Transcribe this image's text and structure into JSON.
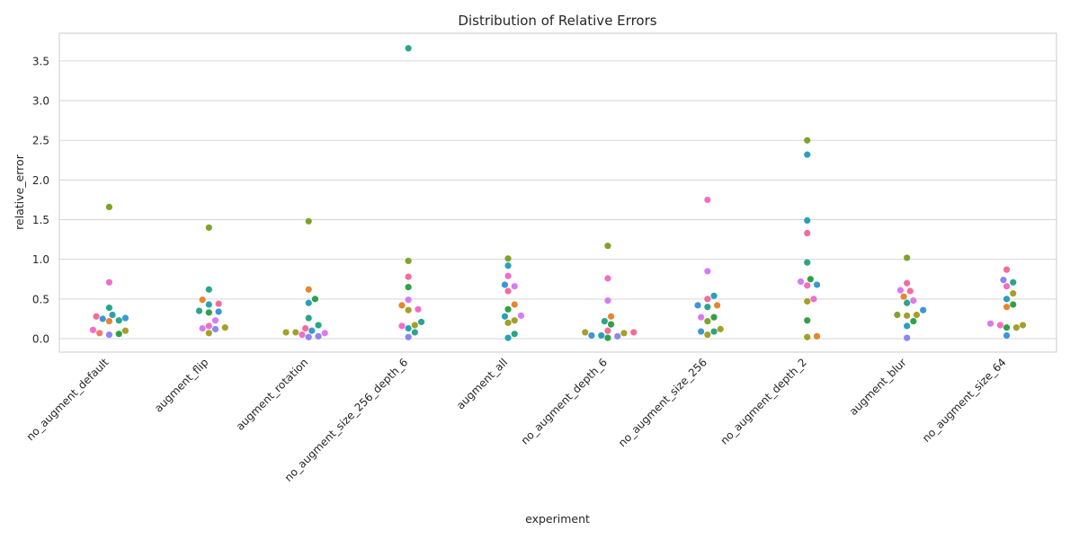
{
  "chart_data": {
    "type": "scatter",
    "subtype": "swarm",
    "title": "Distribution of Relative Errors",
    "xlabel": "experiment",
    "ylabel": "relative_error",
    "ylim": [
      -0.17,
      3.85
    ],
    "yticks": [
      0.0,
      0.5,
      1.0,
      1.5,
      2.0,
      2.5,
      3.0,
      3.5
    ],
    "ytick_labels": [
      "0.0",
      "0.5",
      "1.0",
      "1.5",
      "2.0",
      "2.5",
      "3.0",
      "3.5"
    ],
    "grid": true,
    "legend": "none",
    "palette": [
      "#f8766d",
      "#e6862f",
      "#a3a02a",
      "#7da32a",
      "#2fa147",
      "#2aa58a",
      "#2aa0b8",
      "#3b97d6",
      "#8b86f0",
      "#d67cf0",
      "#f06ec9",
      "#f56b9b"
    ],
    "categories": [
      "no_augment_default",
      "augment_flip",
      "augment_rotation",
      "no_augment_size_256_depth_6",
      "augment_all",
      "no_augment_depth_6",
      "no_augment_size_256",
      "no_augment_depth_2",
      "augment_blur",
      "no_augment_size_64"
    ],
    "points": [
      {
        "category": "no_augment_default",
        "y": 1.66,
        "color": "#7da32a"
      },
      {
        "category": "no_augment_default",
        "y": 0.71,
        "color": "#f06ec9"
      },
      {
        "category": "no_augment_default",
        "y": 0.39,
        "color": "#2aa58a"
      },
      {
        "category": "no_augment_default",
        "y": 0.3,
        "color": "#2aa0b8"
      },
      {
        "category": "no_augment_default",
        "y": 0.28,
        "color": "#f56b9b"
      },
      {
        "category": "no_augment_default",
        "y": 0.26,
        "color": "#3b97d6"
      },
      {
        "category": "no_augment_default",
        "y": 0.25,
        "color": "#3b97d6"
      },
      {
        "category": "no_augment_default",
        "y": 0.23,
        "color": "#2aa58a"
      },
      {
        "category": "no_augment_default",
        "y": 0.22,
        "color": "#e6862f"
      },
      {
        "category": "no_augment_default",
        "y": 0.11,
        "color": "#f06ec9"
      },
      {
        "category": "no_augment_default",
        "y": 0.1,
        "color": "#a3a02a"
      },
      {
        "category": "no_augment_default",
        "y": 0.07,
        "color": "#f8766d"
      },
      {
        "category": "no_augment_default",
        "y": 0.06,
        "color": "#2fa147"
      },
      {
        "category": "no_augment_default",
        "y": 0.05,
        "color": "#8b86f0"
      },
      {
        "category": "augment_flip",
        "y": 1.4,
        "color": "#7da32a"
      },
      {
        "category": "augment_flip",
        "y": 0.62,
        "color": "#2aa58a"
      },
      {
        "category": "augment_flip",
        "y": 0.49,
        "color": "#e6862f"
      },
      {
        "category": "augment_flip",
        "y": 0.44,
        "color": "#f56b9b"
      },
      {
        "category": "augment_flip",
        "y": 0.43,
        "color": "#2aa0b8"
      },
      {
        "category": "augment_flip",
        "y": 0.35,
        "color": "#2aa58a"
      },
      {
        "category": "augment_flip",
        "y": 0.34,
        "color": "#3b97d6"
      },
      {
        "category": "augment_flip",
        "y": 0.33,
        "color": "#2fa147"
      },
      {
        "category": "augment_flip",
        "y": 0.23,
        "color": "#d67cf0"
      },
      {
        "category": "augment_flip",
        "y": 0.16,
        "color": "#f06ec9"
      },
      {
        "category": "augment_flip",
        "y": 0.14,
        "color": "#a3a02a"
      },
      {
        "category": "augment_flip",
        "y": 0.13,
        "color": "#d67cf0"
      },
      {
        "category": "augment_flip",
        "y": 0.12,
        "color": "#8b86f0"
      },
      {
        "category": "augment_flip",
        "y": 0.07,
        "color": "#a3a02a"
      },
      {
        "category": "augment_rotation",
        "y": 1.48,
        "color": "#7da32a"
      },
      {
        "category": "augment_rotation",
        "y": 0.62,
        "color": "#e6862f"
      },
      {
        "category": "augment_rotation",
        "y": 0.5,
        "color": "#2fa147"
      },
      {
        "category": "augment_rotation",
        "y": 0.45,
        "color": "#2aa0b8"
      },
      {
        "category": "augment_rotation",
        "y": 0.26,
        "color": "#2aa58a"
      },
      {
        "category": "augment_rotation",
        "y": 0.17,
        "color": "#2aa58a"
      },
      {
        "category": "augment_rotation",
        "y": 0.13,
        "color": "#f56b9b"
      },
      {
        "category": "augment_rotation",
        "y": 0.1,
        "color": "#3b97d6"
      },
      {
        "category": "augment_rotation",
        "y": 0.08,
        "color": "#a3a02a"
      },
      {
        "category": "augment_rotation",
        "y": 0.08,
        "color": "#a3a02a"
      },
      {
        "category": "augment_rotation",
        "y": 0.07,
        "color": "#d67cf0"
      },
      {
        "category": "augment_rotation",
        "y": 0.05,
        "color": "#f06ec9"
      },
      {
        "category": "augment_rotation",
        "y": 0.03,
        "color": "#8b86f0"
      },
      {
        "category": "augment_rotation",
        "y": 0.02,
        "color": "#8b86f0"
      },
      {
        "category": "no_augment_size_256_depth_6",
        "y": 3.66,
        "color": "#2aa58a"
      },
      {
        "category": "no_augment_size_256_depth_6",
        "y": 0.98,
        "color": "#7da32a"
      },
      {
        "category": "no_augment_size_256_depth_6",
        "y": 0.78,
        "color": "#f56b9b"
      },
      {
        "category": "no_augment_size_256_depth_6",
        "y": 0.65,
        "color": "#2fa147"
      },
      {
        "category": "no_augment_size_256_depth_6",
        "y": 0.49,
        "color": "#d67cf0"
      },
      {
        "category": "no_augment_size_256_depth_6",
        "y": 0.42,
        "color": "#e6862f"
      },
      {
        "category": "no_augment_size_256_depth_6",
        "y": 0.37,
        "color": "#f06ec9"
      },
      {
        "category": "no_augment_size_256_depth_6",
        "y": 0.36,
        "color": "#a3a02a"
      },
      {
        "category": "no_augment_size_256_depth_6",
        "y": 0.21,
        "color": "#2aa58a"
      },
      {
        "category": "no_augment_size_256_depth_6",
        "y": 0.17,
        "color": "#a3a02a"
      },
      {
        "category": "no_augment_size_256_depth_6",
        "y": 0.16,
        "color": "#f06ec9"
      },
      {
        "category": "no_augment_size_256_depth_6",
        "y": 0.13,
        "color": "#2aa0b8"
      },
      {
        "category": "no_augment_size_256_depth_6",
        "y": 0.08,
        "color": "#2aa58a"
      },
      {
        "category": "no_augment_size_256_depth_6",
        "y": 0.02,
        "color": "#8b86f0"
      },
      {
        "category": "augment_all",
        "y": 1.01,
        "color": "#7da32a"
      },
      {
        "category": "augment_all",
        "y": 0.92,
        "color": "#2aa0b8"
      },
      {
        "category": "augment_all",
        "y": 0.79,
        "color": "#f06ec9"
      },
      {
        "category": "augment_all",
        "y": 0.68,
        "color": "#3b97d6"
      },
      {
        "category": "augment_all",
        "y": 0.66,
        "color": "#d67cf0"
      },
      {
        "category": "augment_all",
        "y": 0.6,
        "color": "#f56b9b"
      },
      {
        "category": "augment_all",
        "y": 0.43,
        "color": "#e6862f"
      },
      {
        "category": "augment_all",
        "y": 0.37,
        "color": "#2fa147"
      },
      {
        "category": "augment_all",
        "y": 0.29,
        "color": "#d67cf0"
      },
      {
        "category": "augment_all",
        "y": 0.28,
        "color": "#2aa0b8"
      },
      {
        "category": "augment_all",
        "y": 0.23,
        "color": "#a3a02a"
      },
      {
        "category": "augment_all",
        "y": 0.2,
        "color": "#a3a02a"
      },
      {
        "category": "augment_all",
        "y": 0.06,
        "color": "#2aa58a"
      },
      {
        "category": "augment_all",
        "y": 0.01,
        "color": "#2aa0b8"
      },
      {
        "category": "no_augment_depth_6",
        "y": 1.17,
        "color": "#7da32a"
      },
      {
        "category": "no_augment_depth_6",
        "y": 0.76,
        "color": "#f06ec9"
      },
      {
        "category": "no_augment_depth_6",
        "y": 0.48,
        "color": "#d67cf0"
      },
      {
        "category": "no_augment_depth_6",
        "y": 0.28,
        "color": "#e6862f"
      },
      {
        "category": "no_augment_depth_6",
        "y": 0.22,
        "color": "#2aa58a"
      },
      {
        "category": "no_augment_depth_6",
        "y": 0.18,
        "color": "#2fa147"
      },
      {
        "category": "no_augment_depth_6",
        "y": 0.1,
        "color": "#f56b9b"
      },
      {
        "category": "no_augment_depth_6",
        "y": 0.08,
        "color": "#a3a02a"
      },
      {
        "category": "no_augment_depth_6",
        "y": 0.08,
        "color": "#f56b9b"
      },
      {
        "category": "no_augment_depth_6",
        "y": 0.07,
        "color": "#a3a02a"
      },
      {
        "category": "no_augment_depth_6",
        "y": 0.04,
        "color": "#2aa0b8"
      },
      {
        "category": "no_augment_depth_6",
        "y": 0.04,
        "color": "#3b97d6"
      },
      {
        "category": "no_augment_depth_6",
        "y": 0.03,
        "color": "#8b86f0"
      },
      {
        "category": "no_augment_depth_6",
        "y": 0.01,
        "color": "#2fa147"
      },
      {
        "category": "no_augment_size_256",
        "y": 1.75,
        "color": "#f06ec9"
      },
      {
        "category": "no_augment_size_256",
        "y": 0.85,
        "color": "#d67cf0"
      },
      {
        "category": "no_augment_size_256",
        "y": 0.54,
        "color": "#2aa0b8"
      },
      {
        "category": "no_augment_size_256",
        "y": 0.5,
        "color": "#f56b9b"
      },
      {
        "category": "no_augment_size_256",
        "y": 0.42,
        "color": "#e6862f"
      },
      {
        "category": "no_augment_size_256",
        "y": 0.42,
        "color": "#3b97d6"
      },
      {
        "category": "no_augment_size_256",
        "y": 0.4,
        "color": "#2aa58a"
      },
      {
        "category": "no_augment_size_256",
        "y": 0.27,
        "color": "#2fa147"
      },
      {
        "category": "no_augment_size_256",
        "y": 0.27,
        "color": "#d67cf0"
      },
      {
        "category": "no_augment_size_256",
        "y": 0.22,
        "color": "#7da32a"
      },
      {
        "category": "no_augment_size_256",
        "y": 0.12,
        "color": "#a3a02a"
      },
      {
        "category": "no_augment_size_256",
        "y": 0.09,
        "color": "#2aa58a"
      },
      {
        "category": "no_augment_size_256",
        "y": 0.09,
        "color": "#3b97d6"
      },
      {
        "category": "no_augment_size_256",
        "y": 0.05,
        "color": "#a3a02a"
      },
      {
        "category": "no_augment_depth_2",
        "y": 2.5,
        "color": "#7da32a"
      },
      {
        "category": "no_augment_depth_2",
        "y": 2.32,
        "color": "#2aa0b8"
      },
      {
        "category": "no_augment_depth_2",
        "y": 1.49,
        "color": "#2aa0b8"
      },
      {
        "category": "no_augment_depth_2",
        "y": 1.33,
        "color": "#f56b9b"
      },
      {
        "category": "no_augment_depth_2",
        "y": 0.96,
        "color": "#2aa58a"
      },
      {
        "category": "no_augment_depth_2",
        "y": 0.75,
        "color": "#2fa147"
      },
      {
        "category": "no_augment_depth_2",
        "y": 0.72,
        "color": "#d67cf0"
      },
      {
        "category": "no_augment_depth_2",
        "y": 0.68,
        "color": "#3b97d6"
      },
      {
        "category": "no_augment_depth_2",
        "y": 0.67,
        "color": "#f06ec9"
      },
      {
        "category": "no_augment_depth_2",
        "y": 0.5,
        "color": "#f06ec9"
      },
      {
        "category": "no_augment_depth_2",
        "y": 0.47,
        "color": "#a3a02a"
      },
      {
        "category": "no_augment_depth_2",
        "y": 0.23,
        "color": "#2fa147"
      },
      {
        "category": "no_augment_depth_2",
        "y": 0.03,
        "color": "#e6862f"
      },
      {
        "category": "no_augment_depth_2",
        "y": 0.02,
        "color": "#a3a02a"
      },
      {
        "category": "augment_blur",
        "y": 1.02,
        "color": "#7da32a"
      },
      {
        "category": "augment_blur",
        "y": 0.7,
        "color": "#f56b9b"
      },
      {
        "category": "augment_blur",
        "y": 0.61,
        "color": "#d67cf0"
      },
      {
        "category": "augment_blur",
        "y": 0.6,
        "color": "#f56b9b"
      },
      {
        "category": "augment_blur",
        "y": 0.53,
        "color": "#e6862f"
      },
      {
        "category": "augment_blur",
        "y": 0.48,
        "color": "#d67cf0"
      },
      {
        "category": "augment_blur",
        "y": 0.45,
        "color": "#2aa58a"
      },
      {
        "category": "augment_blur",
        "y": 0.36,
        "color": "#3b97d6"
      },
      {
        "category": "augment_blur",
        "y": 0.3,
        "color": "#a3a02a"
      },
      {
        "category": "augment_blur",
        "y": 0.3,
        "color": "#7da32a"
      },
      {
        "category": "augment_blur",
        "y": 0.29,
        "color": "#a3a02a"
      },
      {
        "category": "augment_blur",
        "y": 0.22,
        "color": "#2fa147"
      },
      {
        "category": "augment_blur",
        "y": 0.16,
        "color": "#2aa0b8"
      },
      {
        "category": "augment_blur",
        "y": 0.01,
        "color": "#8b86f0"
      },
      {
        "category": "no_augment_size_64",
        "y": 0.87,
        "color": "#f56b9b"
      },
      {
        "category": "no_augment_size_64",
        "y": 0.74,
        "color": "#8b86f0"
      },
      {
        "category": "no_augment_size_64",
        "y": 0.71,
        "color": "#2aa58a"
      },
      {
        "category": "no_augment_size_64",
        "y": 0.66,
        "color": "#f06ec9"
      },
      {
        "category": "no_augment_size_64",
        "y": 0.57,
        "color": "#a3a02a"
      },
      {
        "category": "no_augment_size_64",
        "y": 0.5,
        "color": "#2aa0b8"
      },
      {
        "category": "no_augment_size_64",
        "y": 0.43,
        "color": "#2fa147"
      },
      {
        "category": "no_augment_size_64",
        "y": 0.4,
        "color": "#e6862f"
      },
      {
        "category": "no_augment_size_64",
        "y": 0.19,
        "color": "#d67cf0"
      },
      {
        "category": "no_augment_size_64",
        "y": 0.17,
        "color": "#f06ec9"
      },
      {
        "category": "no_augment_size_64",
        "y": 0.17,
        "color": "#a3a02a"
      },
      {
        "category": "no_augment_size_64",
        "y": 0.14,
        "color": "#2fa147"
      },
      {
        "category": "no_augment_size_64",
        "y": 0.14,
        "color": "#a3a02a"
      },
      {
        "category": "no_augment_size_64",
        "y": 0.04,
        "color": "#3b97d6"
      }
    ]
  }
}
